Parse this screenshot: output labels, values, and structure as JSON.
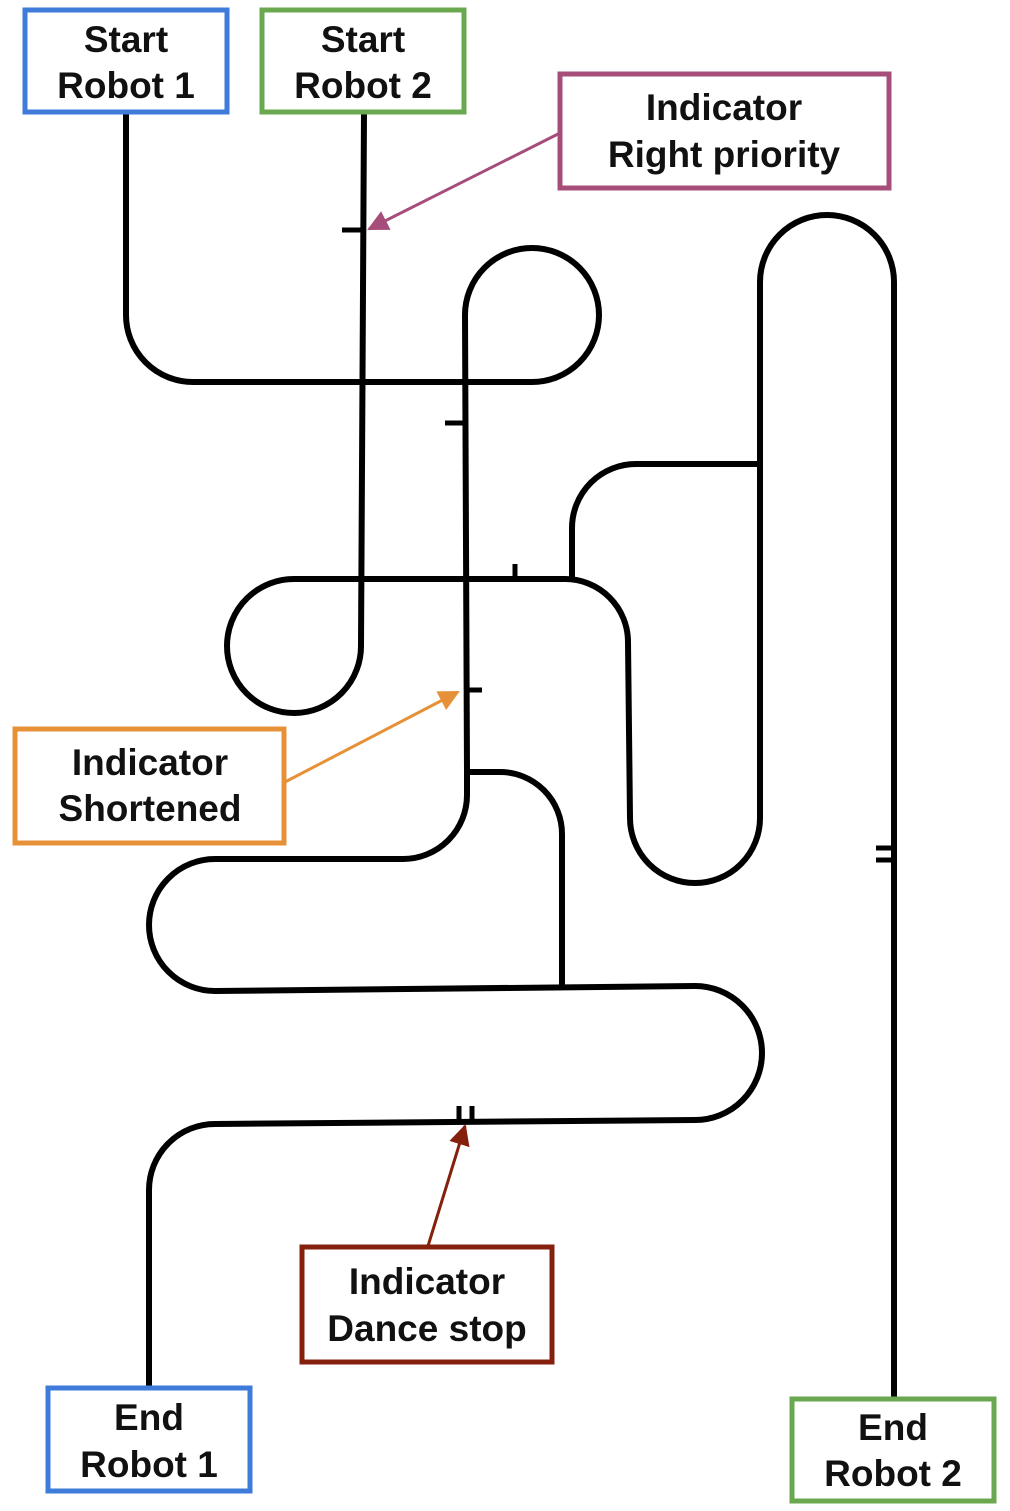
{
  "colors": {
    "track": "#000000",
    "robot1": "#3f7bd9",
    "robot2": "#6aa84f",
    "right_priority": "#a64d79",
    "shortened": "#e69138",
    "dance_stop": "#85200c"
  },
  "boxes": {
    "start_robot1": {
      "line1": "Start",
      "line2": "Robot 1"
    },
    "start_robot2": {
      "line1": "Start",
      "line2": "Robot 2"
    },
    "indicator_right_priority": {
      "line1": "Indicator",
      "line2": "Right priority"
    },
    "indicator_shortened": {
      "line1": "Indicator",
      "line2": "Shortened"
    },
    "indicator_dance_stop": {
      "line1": "Indicator",
      "line2": "Dance stop"
    },
    "end_robot1": {
      "line1": "End",
      "line2": "Robot 1"
    },
    "end_robot2": {
      "line1": "End",
      "line2": "Robot 2"
    }
  }
}
